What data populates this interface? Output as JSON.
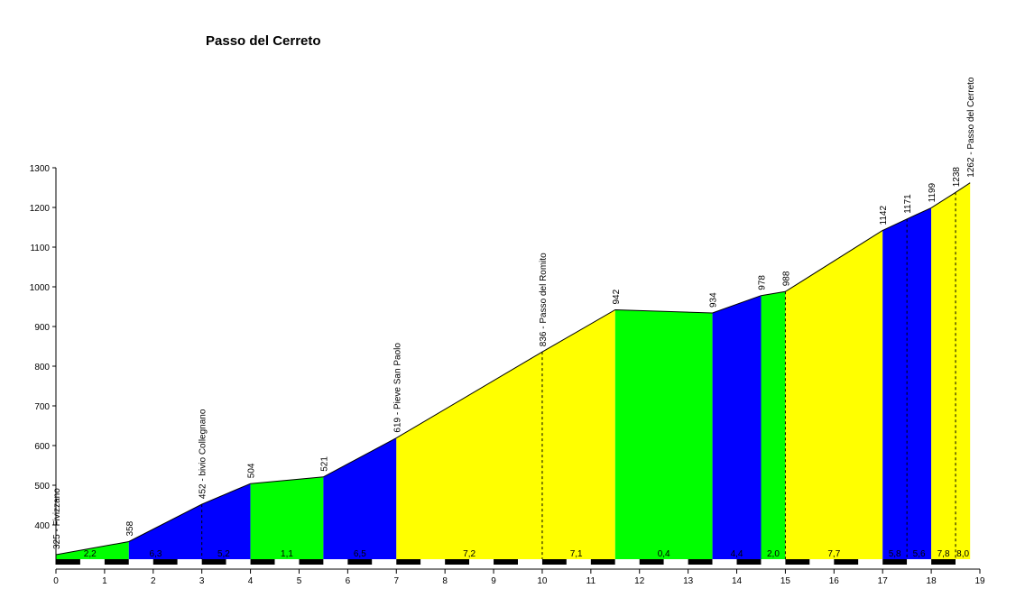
{
  "chart_data": {
    "type": "area",
    "title": "Passo del Cerreto",
    "xlabel": "",
    "ylabel": "",
    "xlim": [
      0,
      19
    ],
    "ylim": [
      300,
      1300
    ],
    "x_ticks": [
      "0",
      "1",
      "2",
      "3",
      "4",
      "5",
      "6",
      "7",
      "8",
      "9",
      "10",
      "11",
      "12",
      "13",
      "14",
      "15",
      "16",
      "17",
      "18",
      "19"
    ],
    "y_ticks": [
      "400",
      "500",
      "600",
      "700",
      "800",
      "900",
      "1000",
      "1100",
      "1200",
      "1300"
    ],
    "grid": false,
    "profile": [
      {
        "x": 0,
        "y": 325
      },
      {
        "x": 1.5,
        "y": 358
      },
      {
        "x": 3,
        "y": 452
      },
      {
        "x": 4,
        "y": 504
      },
      {
        "x": 5.5,
        "y": 521
      },
      {
        "x": 7,
        "y": 619
      },
      {
        "x": 10,
        "y": 836
      },
      {
        "x": 11.5,
        "y": 942
      },
      {
        "x": 13.5,
        "y": 934
      },
      {
        "x": 14.5,
        "y": 978
      },
      {
        "x": 15,
        "y": 988
      },
      {
        "x": 17,
        "y": 1142
      },
      {
        "x": 17.5,
        "y": 1171
      },
      {
        "x": 18,
        "y": 1199
      },
      {
        "x": 18.5,
        "y": 1238
      },
      {
        "x": 18.8,
        "y": 1262
      }
    ],
    "segments": [
      {
        "from": 0,
        "to": 1.5,
        "gradient": "2,2",
        "color": "#00ff00"
      },
      {
        "from": 1.5,
        "to": 4,
        "gradient": "6,3",
        "color": "#0000ff"
      },
      {
        "from": 4,
        "to": 5.5,
        "gradient": "1,1",
        "color": "#00ff00"
      },
      {
        "from": 5.5,
        "to": 7,
        "gradient": "6,5",
        "color": "#0000ff"
      },
      {
        "from": 7,
        "to": 11.5,
        "gradient": "7,2",
        "color": "#ffff00"
      },
      {
        "from": 11.5,
        "to": 13.5,
        "gradient": "0,4",
        "color": "#00ff00"
      },
      {
        "from": 13.5,
        "to": 14.5,
        "gradient": "4,4",
        "color": "#0000ff"
      },
      {
        "from": 14.5,
        "to": 15,
        "gradient": "2,0",
        "color": "#00ff00"
      },
      {
        "from": 15,
        "to": 17,
        "gradient": "7,7",
        "color": "#ffff00"
      },
      {
        "from": 17,
        "to": 18,
        "gradient": "5,8",
        "color": "#0000ff"
      },
      {
        "from": 18,
        "to": 18.8,
        "gradient": "7,8",
        "color": "#ffff00"
      }
    ],
    "segment_labels": [
      {
        "x": 0.7,
        "text": "2,2"
      },
      {
        "x": 2.05,
        "text": "6,3"
      },
      {
        "x": 3.45,
        "text": "5,2"
      },
      {
        "x": 4.75,
        "text": "1,1"
      },
      {
        "x": 6.25,
        "text": "6,5"
      },
      {
        "x": 8.5,
        "text": "7,2"
      },
      {
        "x": 10.7,
        "text": "7,1"
      },
      {
        "x": 12.5,
        "text": "0,4"
      },
      {
        "x": 14.0,
        "text": "4,4"
      },
      {
        "x": 14.75,
        "text": "2,0"
      },
      {
        "x": 16.0,
        "text": "7,7"
      },
      {
        "x": 17.25,
        "text": "5,8"
      },
      {
        "x": 17.75,
        "text": "5,6"
      },
      {
        "x": 18.25,
        "text": "7,8"
      },
      {
        "x": 18.65,
        "text": "8,0"
      }
    ],
    "annotations": [
      {
        "x": 0,
        "y": 325,
        "text": "325 - Fivizzano",
        "dashed": false
      },
      {
        "x": 1.5,
        "y": 358,
        "text": "358",
        "dashed": false
      },
      {
        "x": 3,
        "y": 452,
        "text": "452 - bivio Collegnano",
        "dashed": true
      },
      {
        "x": 4,
        "y": 504,
        "text": "504",
        "dashed": false
      },
      {
        "x": 5.5,
        "y": 521,
        "text": "521",
        "dashed": false
      },
      {
        "x": 7,
        "y": 619,
        "text": "619 - Pieve San Paolo",
        "dashed": false
      },
      {
        "x": 10,
        "y": 836,
        "text": "836 - Passo del Romito",
        "dashed": true
      },
      {
        "x": 11.5,
        "y": 942,
        "text": "942",
        "dashed": false
      },
      {
        "x": 13.5,
        "y": 934,
        "text": "934",
        "dashed": false
      },
      {
        "x": 14.5,
        "y": 978,
        "text": "978",
        "dashed": false
      },
      {
        "x": 15,
        "y": 988,
        "text": "988",
        "dashed": true
      },
      {
        "x": 17,
        "y": 1142,
        "text": "1142",
        "dashed": false
      },
      {
        "x": 17.5,
        "y": 1171,
        "text": "1171",
        "dashed": true
      },
      {
        "x": 18,
        "y": 1199,
        "text": "1199",
        "dashed": false
      },
      {
        "x": 18.5,
        "y": 1238,
        "text": "1238",
        "dashed": true
      },
      {
        "x": 18.8,
        "y": 1262,
        "text": "1262 - Passo del Cerreto",
        "dashed": false
      }
    ]
  }
}
